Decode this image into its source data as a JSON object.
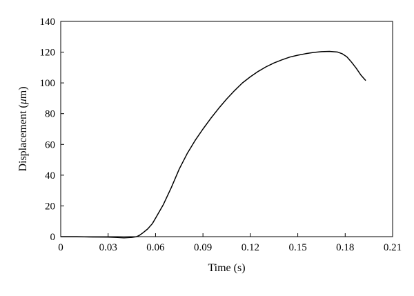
{
  "chart_data": {
    "type": "line",
    "title": "",
    "xlabel": "Time (s)",
    "ylabel_prefix": "Displacement (",
    "ylabel_unit": "μ",
    "ylabel_suffix": "m)",
    "xlim": [
      0,
      0.21
    ],
    "ylim": [
      0,
      140
    ],
    "xticks": [
      "0",
      "0.03",
      "0.06",
      "0.09",
      "0.12",
      "0.15",
      "0.18",
      "0.21"
    ],
    "yticks": [
      "0",
      "20",
      "40",
      "60",
      "80",
      "100",
      "120",
      "140"
    ],
    "grid": false,
    "series": [
      {
        "x": [
          0,
          0.01,
          0.02,
          0.03,
          0.035,
          0.04,
          0.045,
          0.048,
          0.05,
          0.052,
          0.055,
          0.058,
          0.06,
          0.065,
          0.07,
          0.075,
          0.08,
          0.085,
          0.09,
          0.095,
          0.1,
          0.105,
          0.11,
          0.115,
          0.12,
          0.125,
          0.13,
          0.135,
          0.14,
          0.145,
          0.15,
          0.155,
          0.16,
          0.165,
          0.17,
          0.175,
          0.178,
          0.181,
          0.184,
          0.187,
          0.19,
          0.193
        ],
        "y": [
          0,
          0,
          -0.2,
          -0.3,
          -0.5,
          -0.8,
          -0.5,
          0,
          1,
          2.5,
          5,
          8.5,
          12,
          21,
          32,
          44,
          54,
          62.5,
          70,
          77,
          83.5,
          89.5,
          95,
          100,
          104,
          107.5,
          110.5,
          113,
          115,
          116.8,
          118,
          119,
          119.8,
          120.3,
          120.5,
          120.1,
          119,
          117,
          113.5,
          109.5,
          105,
          101.5
        ]
      }
    ]
  }
}
